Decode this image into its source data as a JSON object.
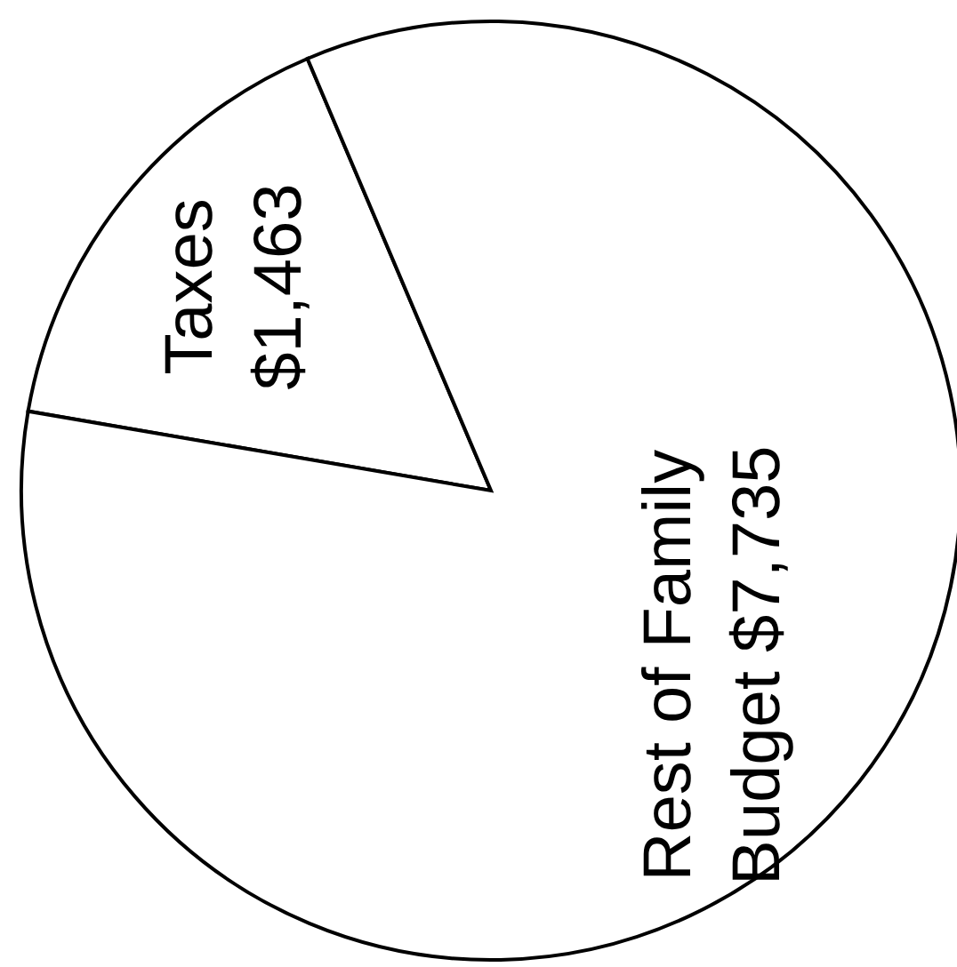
{
  "chart_data": {
    "type": "pie",
    "categories": [
      "Taxes",
      "Rest of Family Budget"
    ],
    "values": [
      1463,
      7735
    ],
    "value_labels": [
      "$1,463",
      "$7,735"
    ],
    "colors": [
      "#ffffff",
      "#ffffff"
    ]
  }
}
